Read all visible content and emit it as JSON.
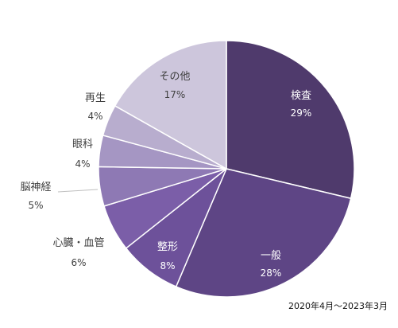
{
  "chart_data": {
    "type": "pie",
    "slices": [
      {
        "label": "検査",
        "percent_label": "29%",
        "value": 29,
        "color": "#4f3a6c"
      },
      {
        "label": "一般",
        "percent_label": "28%",
        "value": 28,
        "color": "#5e4585"
      },
      {
        "label": "整形",
        "percent_label": "8%",
        "value": 8,
        "color": "#6d519a"
      },
      {
        "label": "心臓・血管",
        "percent_label": "6%",
        "value": 6,
        "color": "#7b5ea8"
      },
      {
        "label": "脳神経",
        "percent_label": "5%",
        "value": 5,
        "color": "#8e79b4"
      },
      {
        "label": "眼科",
        "percent_label": "4%",
        "value": 4,
        "color": "#a596c3"
      },
      {
        "label": "再生",
        "percent_label": "4%",
        "value": 4,
        "color": "#b8adce"
      },
      {
        "label": "その他",
        "percent_label": "17%",
        "value": 17,
        "color": "#cdc6dc"
      }
    ],
    "start_angle_deg": 0,
    "direction": "clockwise",
    "note": "2020年4月～2023年3月"
  }
}
